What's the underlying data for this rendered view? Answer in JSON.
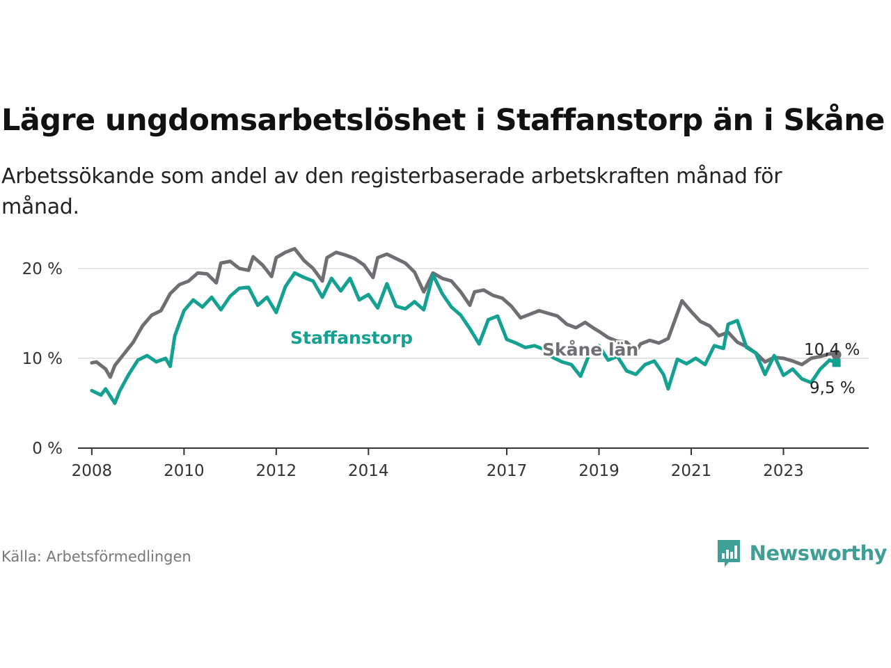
{
  "title": "Lägre ungdomsarbetslöshet i Staffanstorp än i Skåne",
  "subtitle": "Arbetssökande som andel av den registerbaserade arbetskraften månad för månad.",
  "source": "Källa: Arbetsförmedlingen",
  "brand": {
    "name": "Newsworthy",
    "icon": "bar-chart-speech-bubble-icon",
    "color": "#3f9e95"
  },
  "chart_data": {
    "type": "line",
    "title": "Lägre ungdomsarbetslöshet i Staffanstorp än i Skåne",
    "xlabel": "",
    "ylabel": "",
    "xlim": [
      2007.7,
      2024.85
    ],
    "ylim": [
      0,
      22
    ],
    "x_ticks": [
      {
        "value": 2008,
        "label": "2008"
      },
      {
        "value": 2010,
        "label": "2010"
      },
      {
        "value": 2012,
        "label": "2012"
      },
      {
        "value": 2014,
        "label": "2014"
      },
      {
        "value": 2017,
        "label": "2017"
      },
      {
        "value": 2019,
        "label": "2019"
      },
      {
        "value": 2021,
        "label": "2021"
      },
      {
        "value": 2023,
        "label": "2023"
      }
    ],
    "y_ticks": [
      {
        "value": 0,
        "label": "0 %"
      },
      {
        "value": 10,
        "label": "10 %"
      },
      {
        "value": 20,
        "label": "20 %"
      }
    ],
    "grid": true,
    "legend": "inline labels",
    "series": [
      {
        "name": "Skåne län",
        "color": "#6e6e73",
        "end_label": "10,4 %",
        "points": [
          [
            2008.0,
            9.5
          ],
          [
            2008.1,
            9.6
          ],
          [
            2008.3,
            8.8
          ],
          [
            2008.4,
            7.9
          ],
          [
            2008.5,
            9.2
          ],
          [
            2008.7,
            10.5
          ],
          [
            2008.9,
            11.8
          ],
          [
            2009.1,
            13.6
          ],
          [
            2009.3,
            14.8
          ],
          [
            2009.5,
            15.3
          ],
          [
            2009.7,
            17.2
          ],
          [
            2009.9,
            18.2
          ],
          [
            2010.1,
            18.6
          ],
          [
            2010.3,
            19.5
          ],
          [
            2010.5,
            19.4
          ],
          [
            2010.7,
            18.4
          ],
          [
            2010.8,
            20.6
          ],
          [
            2011.0,
            20.8
          ],
          [
            2011.2,
            20.0
          ],
          [
            2011.4,
            19.8
          ],
          [
            2011.5,
            21.3
          ],
          [
            2011.7,
            20.4
          ],
          [
            2011.9,
            19.1
          ],
          [
            2012.0,
            21.2
          ],
          [
            2012.2,
            21.8
          ],
          [
            2012.4,
            22.2
          ],
          [
            2012.6,
            20.9
          ],
          [
            2012.8,
            20.0
          ],
          [
            2013.0,
            18.6
          ],
          [
            2013.1,
            21.2
          ],
          [
            2013.3,
            21.8
          ],
          [
            2013.5,
            21.5
          ],
          [
            2013.7,
            21.1
          ],
          [
            2013.9,
            20.4
          ],
          [
            2014.1,
            19.0
          ],
          [
            2014.2,
            21.2
          ],
          [
            2014.4,
            21.6
          ],
          [
            2014.6,
            21.1
          ],
          [
            2014.8,
            20.6
          ],
          [
            2015.0,
            19.6
          ],
          [
            2015.2,
            17.4
          ],
          [
            2015.4,
            19.5
          ],
          [
            2015.6,
            18.9
          ],
          [
            2015.8,
            18.6
          ],
          [
            2016.0,
            17.4
          ],
          [
            2016.2,
            15.9
          ],
          [
            2016.3,
            17.4
          ],
          [
            2016.5,
            17.6
          ],
          [
            2016.7,
            17.0
          ],
          [
            2016.9,
            16.7
          ],
          [
            2017.1,
            15.8
          ],
          [
            2017.3,
            14.5
          ],
          [
            2017.5,
            14.9
          ],
          [
            2017.7,
            15.3
          ],
          [
            2017.9,
            15.0
          ],
          [
            2018.1,
            14.7
          ],
          [
            2018.3,
            13.8
          ],
          [
            2018.5,
            13.4
          ],
          [
            2018.7,
            14.0
          ],
          [
            2018.9,
            13.3
          ],
          [
            2019.0,
            13.0
          ],
          [
            2019.2,
            12.3
          ],
          [
            2019.4,
            11.9
          ],
          [
            2019.6,
            11.8
          ],
          [
            2019.8,
            10.7
          ],
          [
            2019.9,
            11.6
          ],
          [
            2020.1,
            12.0
          ],
          [
            2020.3,
            11.7
          ],
          [
            2020.5,
            12.2
          ],
          [
            2020.7,
            15.0
          ],
          [
            2020.8,
            16.4
          ],
          [
            2021.0,
            15.2
          ],
          [
            2021.2,
            14.1
          ],
          [
            2021.4,
            13.6
          ],
          [
            2021.6,
            12.5
          ],
          [
            2021.8,
            12.9
          ],
          [
            2022.0,
            11.8
          ],
          [
            2022.2,
            11.3
          ],
          [
            2022.4,
            10.6
          ],
          [
            2022.6,
            9.6
          ],
          [
            2022.8,
            10.1
          ],
          [
            2023.0,
            10.0
          ],
          [
            2023.2,
            9.7
          ],
          [
            2023.4,
            9.3
          ],
          [
            2023.6,
            10.0
          ],
          [
            2023.8,
            10.2
          ],
          [
            2024.0,
            10.5
          ],
          [
            2024.15,
            10.4
          ]
        ]
      },
      {
        "name": "Staffanstorp",
        "color": "#14a192",
        "end_label": "9,5 %",
        "points": [
          [
            2008.0,
            6.4
          ],
          [
            2008.2,
            5.9
          ],
          [
            2008.3,
            6.6
          ],
          [
            2008.5,
            5.0
          ],
          [
            2008.6,
            6.3
          ],
          [
            2008.8,
            8.2
          ],
          [
            2009.0,
            9.8
          ],
          [
            2009.2,
            10.3
          ],
          [
            2009.4,
            9.6
          ],
          [
            2009.6,
            10.0
          ],
          [
            2009.7,
            9.1
          ],
          [
            2009.8,
            12.5
          ],
          [
            2010.0,
            15.3
          ],
          [
            2010.2,
            16.5
          ],
          [
            2010.4,
            15.7
          ],
          [
            2010.6,
            16.8
          ],
          [
            2010.8,
            15.4
          ],
          [
            2011.0,
            16.9
          ],
          [
            2011.2,
            17.8
          ],
          [
            2011.4,
            17.9
          ],
          [
            2011.6,
            15.9
          ],
          [
            2011.8,
            16.8
          ],
          [
            2012.0,
            15.1
          ],
          [
            2012.2,
            18.0
          ],
          [
            2012.4,
            19.5
          ],
          [
            2012.6,
            19.0
          ],
          [
            2012.8,
            18.6
          ],
          [
            2013.0,
            16.8
          ],
          [
            2013.2,
            18.9
          ],
          [
            2013.4,
            17.5
          ],
          [
            2013.6,
            18.9
          ],
          [
            2013.8,
            16.5
          ],
          [
            2014.0,
            17.1
          ],
          [
            2014.2,
            15.6
          ],
          [
            2014.4,
            18.3
          ],
          [
            2014.6,
            15.8
          ],
          [
            2014.8,
            15.5
          ],
          [
            2015.0,
            16.3
          ],
          [
            2015.2,
            15.4
          ],
          [
            2015.4,
            19.3
          ],
          [
            2015.6,
            17.2
          ],
          [
            2015.8,
            15.7
          ],
          [
            2016.0,
            14.8
          ],
          [
            2016.2,
            13.3
          ],
          [
            2016.4,
            11.6
          ],
          [
            2016.6,
            14.3
          ],
          [
            2016.8,
            14.7
          ],
          [
            2017.0,
            12.1
          ],
          [
            2017.2,
            11.7
          ],
          [
            2017.4,
            11.2
          ],
          [
            2017.6,
            11.4
          ],
          [
            2017.8,
            11.0
          ],
          [
            2018.0,
            10.1
          ],
          [
            2018.2,
            9.6
          ],
          [
            2018.4,
            9.3
          ],
          [
            2018.6,
            8.0
          ],
          [
            2018.8,
            10.6
          ],
          [
            2019.0,
            11.4
          ],
          [
            2019.2,
            9.8
          ],
          [
            2019.4,
            10.2
          ],
          [
            2019.6,
            8.6
          ],
          [
            2019.8,
            8.2
          ],
          [
            2020.0,
            9.3
          ],
          [
            2020.2,
            9.7
          ],
          [
            2020.4,
            8.2
          ],
          [
            2020.5,
            6.6
          ],
          [
            2020.7,
            9.9
          ],
          [
            2020.9,
            9.4
          ],
          [
            2021.1,
            10.0
          ],
          [
            2021.3,
            9.3
          ],
          [
            2021.5,
            11.4
          ],
          [
            2021.7,
            11.1
          ],
          [
            2021.8,
            13.8
          ],
          [
            2022.0,
            14.2
          ],
          [
            2022.2,
            11.2
          ],
          [
            2022.4,
            10.6
          ],
          [
            2022.6,
            8.2
          ],
          [
            2022.8,
            10.3
          ],
          [
            2023.0,
            8.1
          ],
          [
            2023.2,
            8.8
          ],
          [
            2023.4,
            7.7
          ],
          [
            2023.6,
            7.3
          ],
          [
            2023.8,
            8.8
          ],
          [
            2024.0,
            9.8
          ],
          [
            2024.15,
            9.5
          ]
        ]
      }
    ]
  }
}
